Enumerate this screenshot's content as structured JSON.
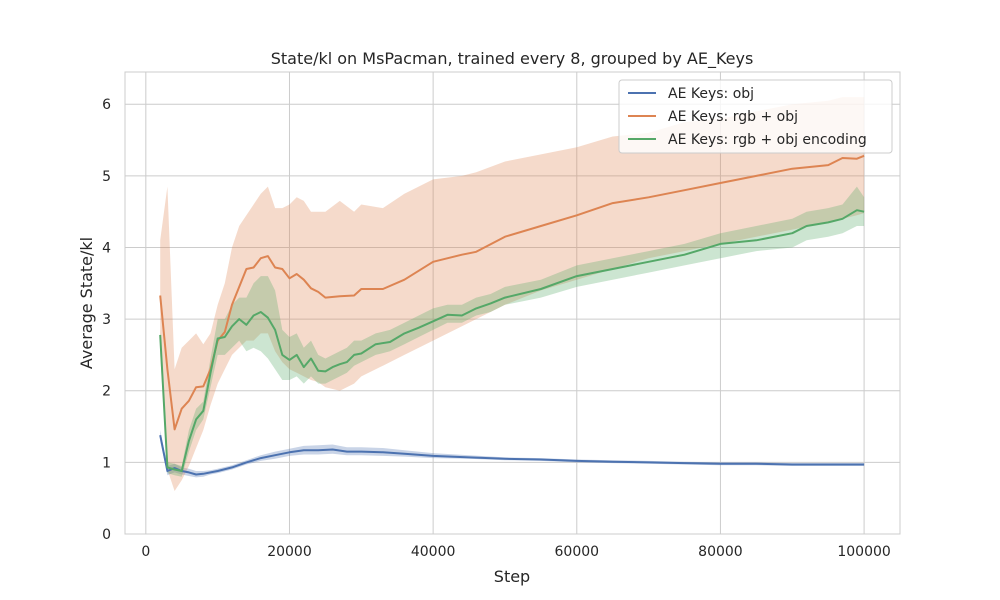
{
  "chart_data": {
    "type": "line",
    "title": "State/kl on MsPacman, trained every 8, grouped by AE_Keys",
    "xlabel": "Step",
    "ylabel": "Average State/kl",
    "xlim": [
      -2900,
      105000
    ],
    "ylim": [
      0,
      6.45
    ],
    "xticks": [
      0,
      20000,
      40000,
      60000,
      80000,
      100000
    ],
    "xtick_labels": [
      "0",
      "20000",
      "40000",
      "60000",
      "80000",
      "100000"
    ],
    "yticks": [
      0,
      1,
      2,
      3,
      4,
      5,
      6
    ],
    "ytick_labels": [
      "0",
      "1",
      "2",
      "3",
      "4",
      "5",
      "6"
    ],
    "grid": true,
    "legend_position": "top-right",
    "series": [
      {
        "name": "AE Keys: obj",
        "color": "#4c72b0",
        "x": [
          2000,
          3000,
          4000,
          5000,
          6000,
          7000,
          8000,
          9000,
          10000,
          12000,
          14000,
          16000,
          18000,
          20000,
          22000,
          24000,
          26000,
          28000,
          30000,
          33000,
          36000,
          40000,
          45000,
          50000,
          55000,
          60000,
          65000,
          70000,
          75000,
          80000,
          85000,
          90000,
          95000,
          100000
        ],
        "y": [
          1.38,
          0.88,
          0.92,
          0.88,
          0.86,
          0.83,
          0.84,
          0.86,
          0.88,
          0.93,
          1.0,
          1.06,
          1.1,
          1.14,
          1.17,
          1.17,
          1.18,
          1.15,
          1.15,
          1.14,
          1.12,
          1.09,
          1.07,
          1.05,
          1.04,
          1.02,
          1.01,
          1.0,
          0.99,
          0.98,
          0.98,
          0.97,
          0.97,
          0.97
        ],
        "lower": [
          1.3,
          0.82,
          0.86,
          0.83,
          0.81,
          0.79,
          0.8,
          0.83,
          0.85,
          0.9,
          0.97,
          1.02,
          1.05,
          1.09,
          1.11,
          1.11,
          1.12,
          1.1,
          1.1,
          1.09,
          1.08,
          1.06,
          1.05,
          1.03,
          1.02,
          1.0,
          0.99,
          0.98,
          0.97,
          0.96,
          0.96,
          0.95,
          0.95,
          0.95
        ],
        "upper": [
          1.45,
          0.95,
          0.98,
          0.93,
          0.91,
          0.88,
          0.88,
          0.89,
          0.91,
          0.96,
          1.03,
          1.1,
          1.15,
          1.19,
          1.23,
          1.24,
          1.25,
          1.21,
          1.21,
          1.2,
          1.17,
          1.13,
          1.1,
          1.07,
          1.06,
          1.04,
          1.03,
          1.02,
          1.01,
          1.0,
          1.0,
          0.99,
          0.99,
          0.99
        ]
      },
      {
        "name": "AE Keys: rgb + obj",
        "color": "#dd8452",
        "x": [
          2000,
          3000,
          4000,
          5000,
          6000,
          7000,
          8000,
          9000,
          10000,
          11000,
          12000,
          13000,
          14000,
          15000,
          16000,
          17000,
          18000,
          19000,
          20000,
          21000,
          22000,
          23000,
          24000,
          25000,
          27000,
          29000,
          30000,
          33000,
          36000,
          40000,
          44000,
          46000,
          50000,
          55000,
          60000,
          65000,
          70000,
          75000,
          80000,
          85000,
          90000,
          95000,
          97000,
          99000,
          100000
        ],
        "y": [
          3.33,
          2.3,
          1.46,
          1.75,
          1.86,
          2.05,
          2.06,
          2.3,
          2.7,
          2.82,
          3.2,
          3.45,
          3.7,
          3.72,
          3.85,
          3.88,
          3.72,
          3.7,
          3.57,
          3.63,
          3.55,
          3.43,
          3.38,
          3.3,
          3.32,
          3.33,
          3.42,
          3.42,
          3.55,
          3.8,
          3.9,
          3.94,
          4.15,
          4.3,
          4.45,
          4.62,
          4.7,
          4.8,
          4.9,
          5.0,
          5.1,
          5.15,
          5.25,
          5.24,
          5.28
        ],
        "lower": [
          2.5,
          0.9,
          0.6,
          0.75,
          0.95,
          1.2,
          1.45,
          1.8,
          2.1,
          2.3,
          2.5,
          2.6,
          2.7,
          2.7,
          2.8,
          2.8,
          2.55,
          2.4,
          2.3,
          2.25,
          2.2,
          2.15,
          2.12,
          2.05,
          2.0,
          2.1,
          2.2,
          2.35,
          2.5,
          2.7,
          2.9,
          3.0,
          3.2,
          3.4,
          3.55,
          3.7,
          3.85,
          3.95,
          4.05,
          4.15,
          4.25,
          4.35,
          4.4,
          4.45,
          4.48
        ],
        "upper": [
          4.1,
          4.85,
          2.3,
          2.6,
          2.7,
          2.8,
          2.65,
          2.8,
          3.2,
          3.5,
          4.0,
          4.3,
          4.45,
          4.6,
          4.75,
          4.85,
          4.55,
          4.55,
          4.6,
          4.7,
          4.65,
          4.5,
          4.5,
          4.5,
          4.65,
          4.5,
          4.6,
          4.55,
          4.75,
          4.95,
          5.0,
          5.05,
          5.2,
          5.3,
          5.4,
          5.55,
          5.6,
          5.75,
          5.8,
          5.9,
          6.0,
          6.05,
          6.1,
          6.1,
          6.1
        ]
      },
      {
        "name": "AE Keys: rgb + obj encoding",
        "color": "#55a868",
        "x": [
          2000,
          3000,
          4000,
          5000,
          6000,
          7000,
          8000,
          9000,
          10000,
          11000,
          12000,
          13000,
          14000,
          15000,
          16000,
          17000,
          18000,
          19000,
          20000,
          21000,
          22000,
          23000,
          24000,
          25000,
          26000,
          27000,
          28000,
          29000,
          30000,
          32000,
          34000,
          36000,
          38000,
          40000,
          42000,
          44000,
          46000,
          48000,
          50000,
          55000,
          60000,
          65000,
          70000,
          75000,
          80000,
          85000,
          90000,
          92000,
          95000,
          97000,
          99000,
          100000
        ],
        "y": [
          2.78,
          0.93,
          0.9,
          0.88,
          1.3,
          1.6,
          1.72,
          2.25,
          2.73,
          2.75,
          2.9,
          3.0,
          2.92,
          3.05,
          3.1,
          3.02,
          2.85,
          2.5,
          2.43,
          2.5,
          2.33,
          2.45,
          2.28,
          2.27,
          2.33,
          2.37,
          2.4,
          2.5,
          2.52,
          2.65,
          2.68,
          2.8,
          2.88,
          2.97,
          3.06,
          3.05,
          3.15,
          3.22,
          3.3,
          3.42,
          3.6,
          3.7,
          3.8,
          3.9,
          4.05,
          4.1,
          4.2,
          4.3,
          4.35,
          4.4,
          4.52,
          4.5
        ],
        "lower": [
          2.7,
          0.85,
          0.82,
          0.8,
          1.15,
          1.45,
          1.6,
          2.05,
          2.5,
          2.5,
          2.6,
          2.7,
          2.55,
          2.6,
          2.55,
          2.45,
          2.3,
          2.15,
          2.15,
          2.2,
          2.1,
          2.2,
          2.1,
          2.1,
          2.15,
          2.2,
          2.25,
          2.35,
          2.4,
          2.5,
          2.55,
          2.65,
          2.75,
          2.85,
          2.95,
          2.95,
          3.05,
          3.1,
          3.2,
          3.3,
          3.45,
          3.55,
          3.65,
          3.75,
          3.85,
          3.95,
          4.0,
          4.1,
          4.15,
          4.2,
          4.3,
          4.3
        ],
        "upper": [
          2.85,
          1.0,
          0.98,
          0.95,
          1.45,
          1.75,
          1.85,
          2.45,
          3.0,
          3.0,
          3.2,
          3.3,
          3.3,
          3.5,
          3.6,
          3.6,
          3.4,
          2.85,
          2.75,
          2.8,
          2.6,
          2.7,
          2.5,
          2.45,
          2.5,
          2.55,
          2.6,
          2.7,
          2.7,
          2.8,
          2.85,
          2.95,
          3.05,
          3.15,
          3.2,
          3.2,
          3.3,
          3.35,
          3.45,
          3.55,
          3.75,
          3.85,
          3.95,
          4.05,
          4.2,
          4.3,
          4.4,
          4.5,
          4.55,
          4.6,
          4.85,
          4.7
        ]
      }
    ]
  }
}
